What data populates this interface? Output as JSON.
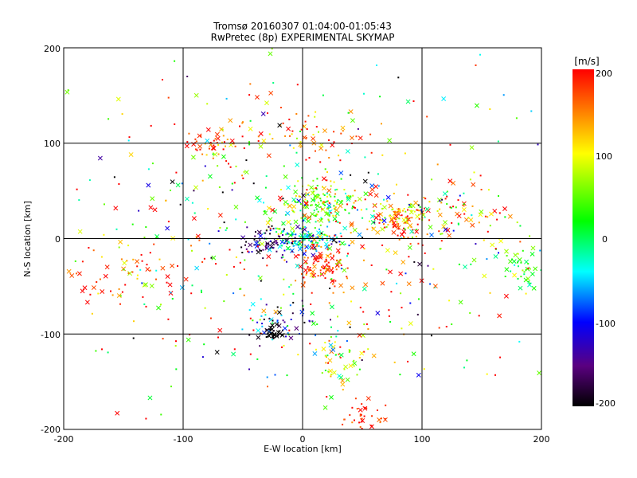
{
  "chart_data": {
    "type": "scatter",
    "title": "Tromsø 20160307 01:04:00-01:05:43",
    "subtitle": "RwPretec (8p) EXPERIMENTAL SKYMAP",
    "xlabel": "E-W location [km]",
    "ylabel": "N-S location [km]",
    "xlim": [
      -200,
      200
    ],
    "ylim": [
      -200,
      200
    ],
    "x_ticks": [
      "-200",
      "-100",
      "0",
      "100",
      "200"
    ],
    "y_ticks": [
      "200",
      "100",
      "0",
      "-100",
      "-200"
    ],
    "grid": true,
    "marker_styles": [
      "x",
      "dot"
    ],
    "colorbar": {
      "label": "[m/s]",
      "range": [
        -200,
        200
      ],
      "ticks": [
        "200",
        "100",
        "0",
        "-100",
        "-200"
      ],
      "colormap": [
        "#000000",
        "#5a0080",
        "#0000ff",
        "#00ffff",
        "#00ff00",
        "#ffff00",
        "#ff0000"
      ]
    },
    "clusters": [
      {
        "x": 15,
        "y": 35,
        "sx": 18,
        "sy": 12,
        "n": 180,
        "v": 60,
        "vs": 60
      },
      {
        "x": 80,
        "y": 20,
        "sx": 16,
        "sy": 12,
        "n": 130,
        "v": 150,
        "vs": 60
      },
      {
        "x": 0,
        "y": 0,
        "sx": 14,
        "sy": 8,
        "n": 140,
        "v": -30,
        "vs": 80
      },
      {
        "x": -30,
        "y": -5,
        "sx": 10,
        "sy": 8,
        "n": 60,
        "v": -160,
        "vs": 40
      },
      {
        "x": 15,
        "y": -30,
        "sx": 12,
        "sy": 12,
        "n": 90,
        "v": 180,
        "vs": 40
      },
      {
        "x": 30,
        "y": -130,
        "sx": 15,
        "sy": 15,
        "n": 50,
        "v": 80,
        "vs": 50
      },
      {
        "x": 55,
        "y": -185,
        "sx": 10,
        "sy": 12,
        "n": 40,
        "v": 190,
        "vs": 20
      },
      {
        "x": 185,
        "y": -30,
        "sx": 12,
        "sy": 12,
        "n": 50,
        "v": 20,
        "vs": 40
      },
      {
        "x": -80,
        "y": 100,
        "sx": 15,
        "sy": 8,
        "n": 40,
        "v": 180,
        "vs": 40
      },
      {
        "x": 0,
        "y": 115,
        "sx": 30,
        "sy": 15,
        "n": 60,
        "v": 170,
        "vs": 50
      },
      {
        "x": -150,
        "y": -40,
        "sx": 25,
        "sy": 15,
        "n": 60,
        "v": 170,
        "vs": 60
      },
      {
        "x": -20,
        "y": -80,
        "sx": 15,
        "sy": 12,
        "n": 50,
        "v": -80,
        "vs": 90
      },
      {
        "x": 130,
        "y": 30,
        "sx": 20,
        "sy": 15,
        "n": 60,
        "v": 140,
        "vs": 80
      },
      {
        "x": -25,
        "y": -100,
        "sx": 5,
        "sy": 4,
        "n": 30,
        "v": -200,
        "vs": 10
      },
      {
        "x": 0,
        "y": 0,
        "sx": 110,
        "sy": 90,
        "n": 550,
        "v": 60,
        "vs": 150
      }
    ]
  }
}
